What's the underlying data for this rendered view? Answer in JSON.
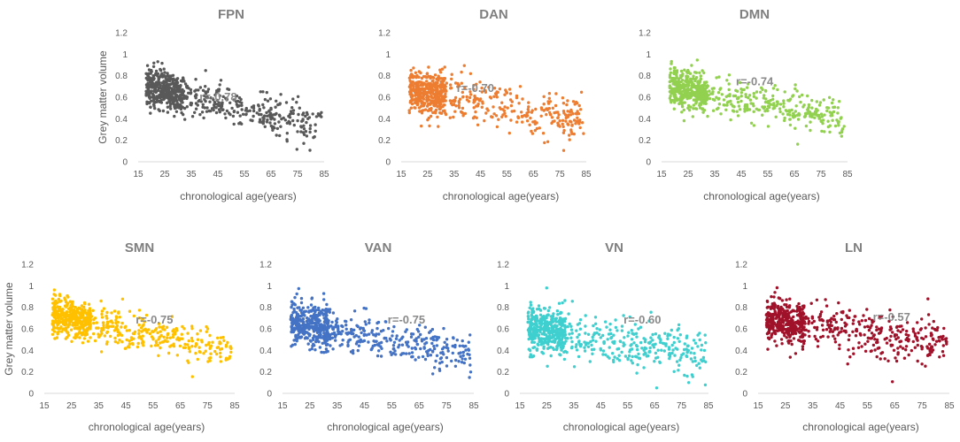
{
  "chart_data": [
    {
      "type": "scatter",
      "title": "FPN",
      "annotation": "r=-0.78",
      "color": "#595959",
      "xlabel": "chronological age(years)",
      "ylabel": "Grey matter volume",
      "xlim": [
        15,
        85
      ],
      "ylim": [
        0,
        1.2
      ],
      "xticks": [
        "15",
        "25",
        "35",
        "45",
        "55",
        "65",
        "75",
        "85"
      ],
      "yticks": [
        "0",
        "0.2",
        "0.4",
        "0.6",
        "0.8",
        "1",
        "1.2"
      ],
      "trend": {
        "intercept_at_15": 0.72,
        "slope_per_year": -0.0055,
        "spread": 0.09
      },
      "n_points": 650
    },
    {
      "type": "scatter",
      "title": "DAN",
      "annotation": "r=-0.70",
      "color": "#ed7d31",
      "xlabel": "chronological age(years)",
      "ylabel": "",
      "xlim": [
        15,
        85
      ],
      "ylim": [
        0,
        1.2
      ],
      "xticks": [
        "15",
        "25",
        "35",
        "45",
        "55",
        "65",
        "75",
        "85"
      ],
      "yticks": [
        "0",
        "0.2",
        "0.4",
        "0.6",
        "0.8",
        "1",
        "1.2"
      ],
      "trend": {
        "intercept_at_15": 0.68,
        "slope_per_year": -0.0042,
        "spread": 0.1
      },
      "n_points": 650
    },
    {
      "type": "scatter",
      "title": "DMN",
      "annotation": "r=-0.74",
      "color": "#92d050",
      "xlabel": "chronological age(years)",
      "ylabel": "",
      "xlim": [
        15,
        85
      ],
      "ylim": [
        0,
        1.2
      ],
      "xticks": [
        "15",
        "25",
        "35",
        "45",
        "55",
        "65",
        "75",
        "85"
      ],
      "yticks": [
        "0",
        "0.2",
        "0.4",
        "0.6",
        "0.8",
        "1",
        "1.2"
      ],
      "trend": {
        "intercept_at_15": 0.72,
        "slope_per_year": -0.0048,
        "spread": 0.09
      },
      "n_points": 650
    },
    {
      "type": "scatter",
      "title": "SMN",
      "annotation": "r=-0.75",
      "color": "#ffc000",
      "xlabel": "chronological age(years)",
      "ylabel": "Grey matter volume",
      "xlim": [
        15,
        85
      ],
      "ylim": [
        0,
        1.2
      ],
      "xticks": [
        "15",
        "25",
        "35",
        "45",
        "55",
        "65",
        "75",
        "85"
      ],
      "yticks": [
        "0",
        "0.2",
        "0.4",
        "0.6",
        "0.8",
        "1",
        "1.2"
      ],
      "trend": {
        "intercept_at_15": 0.74,
        "slope_per_year": -0.0052,
        "spread": 0.09
      },
      "n_points": 650
    },
    {
      "type": "scatter",
      "title": "VAN",
      "annotation": "r=-0.75",
      "color": "#4472c4",
      "xlabel": "chronological age(years)",
      "ylabel": "",
      "xlim": [
        15,
        85
      ],
      "ylim": [
        0,
        1.2
      ],
      "xticks": [
        "15",
        "25",
        "35",
        "45",
        "55",
        "65",
        "75",
        "85"
      ],
      "yticks": [
        "0",
        "0.2",
        "0.4",
        "0.6",
        "0.8",
        "1",
        "1.2"
      ],
      "trend": {
        "intercept_at_15": 0.68,
        "slope_per_year": -0.0045,
        "spread": 0.1
      },
      "n_points": 650
    },
    {
      "type": "scatter",
      "title": "VN",
      "annotation": "r=-0.60",
      "color": "#3fcfcf",
      "xlabel": "chronological age(years)",
      "ylabel": "",
      "xlim": [
        15,
        85
      ],
      "ylim": [
        0,
        1.2
      ],
      "xticks": [
        "15",
        "25",
        "35",
        "45",
        "55",
        "65",
        "75",
        "85"
      ],
      "yticks": [
        "0",
        "0.2",
        "0.4",
        "0.6",
        "0.8",
        "1",
        "1.2"
      ],
      "trend": {
        "intercept_at_15": 0.62,
        "slope_per_year": -0.0035,
        "spread": 0.11
      },
      "n_points": 650
    },
    {
      "type": "scatter",
      "title": "LN",
      "annotation": "r=-0.57",
      "color": "#a0122a",
      "xlabel": "chronological age(years)",
      "ylabel": "",
      "xlim": [
        15,
        85
      ],
      "ylim": [
        0,
        1.2
      ],
      "xticks": [
        "15",
        "25",
        "35",
        "45",
        "55",
        "65",
        "75",
        "85"
      ],
      "yticks": [
        "0",
        "0.2",
        "0.4",
        "0.6",
        "0.8",
        "1",
        "1.2"
      ],
      "trend": {
        "intercept_at_15": 0.7,
        "slope_per_year": -0.0035,
        "spread": 0.1
      },
      "n_points": 650
    }
  ]
}
